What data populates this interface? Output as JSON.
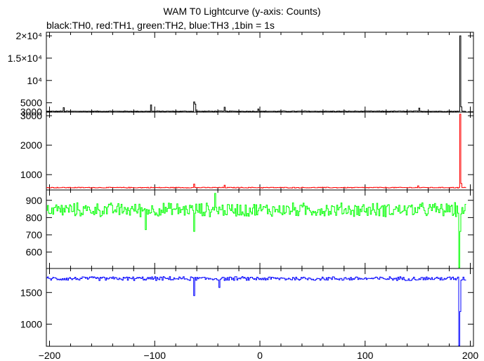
{
  "title": "WAM T0 Lightcurve (y-axis: Counts)",
  "subtitle": "black:TH0, red:TH1, green:TH2, blue:TH3 ,1bin = 1s",
  "chart_data": {
    "type": "line",
    "title": "WAM T0 Lightcurve (y-axis: Counts)",
    "xlabel": "",
    "ylabel": "Counts",
    "xlim": [
      -203,
      203
    ],
    "xticks": [
      -200,
      -100,
      0,
      100,
      200
    ],
    "xtick_labels": [
      "−200",
      "−100",
      "0",
      "100",
      "200"
    ],
    "grid": false,
    "bin_seconds": 1,
    "panels": [
      {
        "name": "TH0",
        "color": "#000000",
        "ylim": [
          2900,
          20800
        ],
        "yticks": [
          3000,
          5000,
          10000,
          15000,
          20000
        ],
        "ytick_labels": [
          "3000",
          "5000",
          "10⁴",
          "1.5×10⁴",
          "2×10⁴"
        ],
        "baseline": 3100,
        "noise": 80,
        "spikes": [
          [
            -186,
            3900
          ],
          [
            -103,
            4500
          ],
          [
            -62,
            5200
          ],
          [
            -61,
            4700
          ],
          [
            -33,
            4000
          ],
          [
            -1,
            3600
          ],
          [
            152,
            3800
          ],
          [
            191,
            20000
          ],
          [
            192,
            4100
          ]
        ]
      },
      {
        "name": "TH1",
        "color": "#ff0000",
        "ylim": [
          480,
          3120
        ],
        "yticks": [
          1000,
          2000,
          3000
        ],
        "ytick_labels": [
          "1000",
          "2000",
          "3000"
        ],
        "baseline": 560,
        "noise": 15,
        "spikes": [
          [
            -62,
            680
          ],
          [
            -33,
            640
          ],
          [
            151,
            620
          ],
          [
            191,
            3050
          ],
          [
            192,
            700
          ]
        ]
      },
      {
        "name": "TH2",
        "color": "#00ff00",
        "ylim": [
          505,
          960
        ],
        "yticks": [
          600,
          700,
          800,
          900
        ],
        "ytick_labels": [
          "600",
          "700",
          "800",
          "900"
        ],
        "baseline": 845,
        "noise": 45,
        "spikes": [
          [
            -42,
            940
          ],
          [
            -62,
            720
          ],
          [
            -108,
            730
          ],
          [
            190,
            510
          ],
          [
            191,
            720
          ]
        ]
      },
      {
        "name": "TH3",
        "color": "#0000ff",
        "ylim": [
          650,
          1880
        ],
        "yticks": [
          1000,
          1500
        ],
        "ytick_labels": [
          "1000",
          "1500"
        ],
        "baseline": 1720,
        "noise": 35,
        "spikes": [
          [
            -62,
            1450
          ],
          [
            -38,
            1580
          ],
          [
            190,
            660
          ],
          [
            191,
            1200
          ]
        ]
      }
    ]
  }
}
